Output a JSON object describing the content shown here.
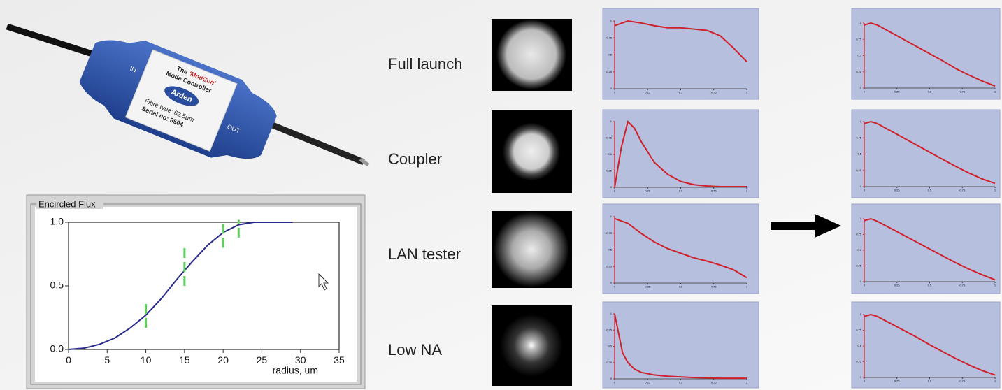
{
  "device": {
    "the": "The",
    "name": "'ModCon'",
    "subtitle": "Mode Controller",
    "brand": "Arden",
    "fibre": "Fibre type:  62.5µm",
    "serial": "Serial no:  3504",
    "in": "IN",
    "out": "OUT"
  },
  "rows": [
    "Full launch",
    "Coupler",
    "LAN tester",
    "Low NA"
  ],
  "chart_data": [
    {
      "type": "line",
      "title": "Encircled Flux",
      "x_label": "radius, um",
      "xlim": [
        0,
        35
      ],
      "xticks": [
        0,
        5,
        10,
        15,
        20,
        25,
        30,
        35
      ],
      "ylim": [
        0,
        1
      ],
      "yticks": [
        {
          "value": 0,
          "label": "0.0"
        },
        {
          "value": 0.5,
          "label": "0.5"
        },
        {
          "value": 1,
          "label": "1.0"
        }
      ],
      "x": [
        0,
        2,
        4,
        6,
        8,
        10,
        12,
        14,
        16,
        18,
        20,
        22,
        24,
        26,
        29
      ],
      "series": [
        {
          "color": "#2a2a8c",
          "values": [
            0,
            0.01,
            0.04,
            0.09,
            0.17,
            0.27,
            0.4,
            0.55,
            0.69,
            0.82,
            0.92,
            0.98,
            1,
            1,
            1
          ]
        }
      ],
      "limits": {
        "color": "#5fcf5f",
        "x": [
          10,
          15,
          20,
          22
        ],
        "low": [
          0.17,
          0.5,
          0.8,
          0.88
        ],
        "high": [
          0.38,
          0.8,
          1.02,
          1.02
        ]
      }
    },
    {
      "type": "line",
      "xlim": [
        0,
        1
      ],
      "ylim": [
        0,
        1
      ],
      "xticks": [
        0,
        0.25,
        0.5,
        0.75,
        1
      ],
      "yticks": [
        0,
        0.25,
        0.5,
        0.75,
        1
      ],
      "x": [
        0,
        0.1,
        0.2,
        0.3,
        0.4,
        0.5,
        0.6,
        0.7,
        0.8,
        0.9,
        1
      ],
      "series": [
        {
          "color": "#d0202a",
          "values": [
            0.93,
            1,
            0.97,
            0.93,
            0.9,
            0.9,
            0.88,
            0.86,
            0.78,
            0.6,
            0.4
          ]
        }
      ]
    },
    {
      "type": "line",
      "xlim": [
        0,
        1
      ],
      "ylim": [
        0,
        1
      ],
      "xticks": [
        0,
        0.25,
        0.5,
        0.75,
        1
      ],
      "yticks": [
        0,
        0.25,
        0.5,
        0.75,
        1
      ],
      "x": [
        0,
        0.05,
        0.1,
        0.15,
        0.2,
        0.3,
        0.4,
        0.5,
        0.6,
        0.7,
        0.8,
        0.9,
        1
      ],
      "series": [
        {
          "color": "#d0202a",
          "values": [
            0,
            0.6,
            1,
            0.9,
            0.7,
            0.38,
            0.2,
            0.09,
            0.04,
            0.02,
            0.01,
            0.01,
            0.01
          ]
        }
      ]
    },
    {
      "type": "line",
      "xlim": [
        0,
        1
      ],
      "ylim": [
        0,
        1
      ],
      "xticks": [
        0,
        0.25,
        0.5,
        0.75,
        1
      ],
      "yticks": [
        0,
        0.25,
        0.5,
        0.75,
        1
      ],
      "x": [
        0,
        0.1,
        0.2,
        0.3,
        0.4,
        0.5,
        0.6,
        0.7,
        0.8,
        0.9,
        1
      ],
      "series": [
        {
          "color": "#d0202a",
          "values": [
            0.97,
            0.9,
            0.75,
            0.62,
            0.52,
            0.45,
            0.38,
            0.33,
            0.27,
            0.2,
            0.08
          ]
        }
      ]
    },
    {
      "type": "line",
      "xlim": [
        0,
        1
      ],
      "ylim": [
        0,
        1
      ],
      "xticks": [
        0,
        0.25,
        0.5,
        0.75,
        1
      ],
      "yticks": [
        0,
        0.25,
        0.5,
        0.75,
        1
      ],
      "x": [
        0,
        0.03,
        0.06,
        0.1,
        0.15,
        0.2,
        0.3,
        0.4,
        0.6,
        0.8,
        1
      ],
      "series": [
        {
          "color": "#d0202a",
          "values": [
            1,
            0.7,
            0.4,
            0.25,
            0.15,
            0.1,
            0.06,
            0.04,
            0.02,
            0.01,
            0.01
          ]
        }
      ]
    },
    {
      "type": "line",
      "xlim": [
        0,
        1
      ],
      "ylim": [
        0,
        1
      ],
      "xticks": [
        0,
        0.25,
        0.5,
        0.75,
        1
      ],
      "yticks": [
        0,
        0.25,
        0.5,
        0.75,
        1
      ],
      "x": [
        0,
        0.05,
        0.1,
        0.2,
        0.3,
        0.4,
        0.5,
        0.6,
        0.7,
        0.8,
        0.9,
        1
      ],
      "series": [
        {
          "color": "#d0202a",
          "values": [
            0.97,
            1,
            0.97,
            0.86,
            0.75,
            0.64,
            0.53,
            0.42,
            0.3,
            0.2,
            0.11,
            0.03
          ]
        }
      ]
    },
    {
      "type": "line",
      "xlim": [
        0,
        1
      ],
      "ylim": [
        0,
        1
      ],
      "xticks": [
        0,
        0.25,
        0.5,
        0.75,
        1
      ],
      "yticks": [
        0,
        0.25,
        0.5,
        0.75,
        1
      ],
      "x": [
        0,
        0.05,
        0.1,
        0.2,
        0.3,
        0.4,
        0.5,
        0.6,
        0.7,
        0.8,
        0.9,
        1
      ],
      "series": [
        {
          "color": "#d0202a",
          "values": [
            0.97,
            1,
            0.97,
            0.86,
            0.75,
            0.64,
            0.53,
            0.42,
            0.31,
            0.21,
            0.12,
            0.05
          ]
        }
      ]
    },
    {
      "type": "line",
      "xlim": [
        0,
        1
      ],
      "ylim": [
        0,
        1
      ],
      "xticks": [
        0,
        0.25,
        0.5,
        0.75,
        1
      ],
      "yticks": [
        0,
        0.25,
        0.5,
        0.75,
        1
      ],
      "x": [
        0,
        0.05,
        0.1,
        0.2,
        0.3,
        0.4,
        0.5,
        0.6,
        0.7,
        0.8,
        0.9,
        1
      ],
      "series": [
        {
          "color": "#d0202a",
          "values": [
            0.97,
            1,
            0.96,
            0.85,
            0.74,
            0.63,
            0.52,
            0.41,
            0.3,
            0.2,
            0.11,
            0.03
          ]
        }
      ]
    },
    {
      "type": "line",
      "xlim": [
        0,
        1
      ],
      "ylim": [
        0,
        1
      ],
      "xticks": [
        0,
        0.25,
        0.5,
        0.75,
        1
      ],
      "yticks": [
        0,
        0.25,
        0.5,
        0.75,
        1
      ],
      "x": [
        0,
        0.05,
        0.1,
        0.2,
        0.3,
        0.4,
        0.5,
        0.6,
        0.7,
        0.8,
        0.9,
        1
      ],
      "series": [
        {
          "color": "#d0202a",
          "values": [
            0.97,
            1,
            0.97,
            0.86,
            0.75,
            0.64,
            0.52,
            0.41,
            0.3,
            0.2,
            0.11,
            0.04
          ]
        }
      ]
    }
  ]
}
